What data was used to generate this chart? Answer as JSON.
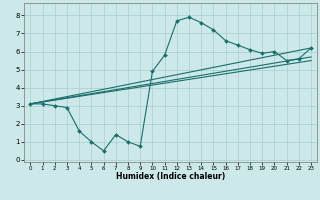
{
  "x": [
    0,
    1,
    2,
    3,
    4,
    5,
    6,
    7,
    8,
    9,
    10,
    11,
    12,
    13,
    14,
    15,
    16,
    17,
    18,
    19,
    20,
    21,
    22,
    23
  ],
  "line_jagged_x": [
    0,
    1,
    2,
    3,
    4,
    5,
    6,
    7,
    8,
    9,
    10,
    11,
    12,
    13,
    14,
    15,
    16,
    17,
    18,
    19,
    20,
    21,
    22,
    23
  ],
  "line_jagged_y": [
    3.1,
    3.1,
    3.0,
    2.9,
    1.6,
    1.0,
    0.5,
    1.4,
    1.0,
    0.75,
    4.9,
    5.8,
    7.7,
    7.9,
    7.6,
    7.2,
    6.6,
    6.35,
    6.1,
    5.9,
    6.0,
    5.5,
    5.6,
    6.2
  ],
  "line2_x": [
    0,
    23
  ],
  "line2_y": [
    3.1,
    5.5
  ],
  "line3_x": [
    0,
    23
  ],
  "line3_y": [
    3.1,
    5.7
  ],
  "line4_x": [
    0,
    23
  ],
  "line4_y": [
    3.1,
    6.2
  ],
  "bg_color": "#cce8e8",
  "line_color": "#1a6e6e",
  "grid_color": "#aacece",
  "xlabel": "Humidex (Indice chaleur)",
  "xlim": [
    -0.5,
    23.5
  ],
  "ylim": [
    -0.1,
    8.7
  ],
  "xticks": [
    0,
    1,
    2,
    3,
    4,
    5,
    6,
    7,
    8,
    9,
    10,
    11,
    12,
    13,
    14,
    15,
    16,
    17,
    18,
    19,
    20,
    21,
    22,
    23
  ],
  "yticks": [
    0,
    1,
    2,
    3,
    4,
    5,
    6,
    7,
    8
  ],
  "marker": "D",
  "markersize": 2.0,
  "linewidth": 0.8
}
